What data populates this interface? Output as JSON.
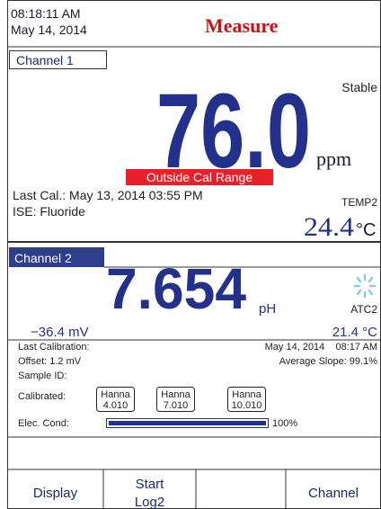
{
  "header": {
    "time": "08:18:11 AM",
    "date": "May 14, 2014",
    "title": "Measure"
  },
  "channel1": {
    "label": "Channel 1",
    "status": "Stable",
    "value": "76.0",
    "unit": "ppm",
    "warning": "Outside Cal Range",
    "last_cal": "Last Cal.: May 13, 2014 03:55 PM",
    "ise": "ISE: Fluoride",
    "temp_label": "TEMP2",
    "temp": "24.4",
    "temp_unit": "°C"
  },
  "channel2": {
    "label": "Channel 2",
    "value": "7.654",
    "unit": "pH",
    "atc": "ATC2",
    "mv": "−36.4 mV",
    "temp": "21.4 °C",
    "last_calibration": "Last Calibration:",
    "cal_datetime": "May 14, 2014    08:17 AM",
    "offset": "Offset: 1.2 mV",
    "slope": "Average Slope: 99.1%",
    "sample_id": "Sample ID:",
    "calibrated": "Calibrated:",
    "buffers": [
      [
        "Hanna",
        "4.010"
      ],
      [
        "Hanna",
        "7.010"
      ],
      [
        "Hanna",
        "10.010"
      ]
    ],
    "elec_cond_label": "Elec. Cond:",
    "elec_cond": {
      "value": 100,
      "label": "100%"
    }
  },
  "softkeys": [
    [
      "Display"
    ],
    [
      "Start",
      "Log2"
    ],
    [
      "Channel"
    ]
  ]
}
